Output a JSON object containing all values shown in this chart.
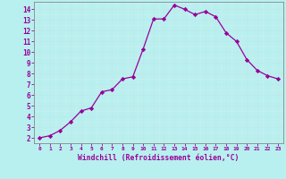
{
  "x": [
    0,
    1,
    2,
    3,
    4,
    5,
    6,
    7,
    8,
    9,
    10,
    11,
    12,
    13,
    14,
    15,
    16,
    17,
    18,
    19,
    20,
    21,
    22,
    23
  ],
  "y": [
    2,
    2.2,
    2.7,
    3.5,
    4.5,
    4.8,
    6.3,
    6.5,
    7.5,
    7.7,
    10.3,
    13.1,
    13.1,
    14.4,
    14.0,
    13.5,
    13.8,
    13.3,
    11.8,
    11.0,
    9.3,
    8.3,
    7.8,
    7.5
  ],
  "line_color": "#990099",
  "marker": "D",
  "markersize": 2.2,
  "linewidth": 0.9,
  "background_color": "#b8f0f0",
  "grid_color": "#aadddd",
  "xlabel": "Windchill (Refroidissement éolien,°C)",
  "xlabel_color": "#990099",
  "tick_color": "#990099",
  "xlim": [
    -0.5,
    23.5
  ],
  "ylim": [
    1.5,
    14.7
  ],
  "yticks": [
    2,
    3,
    4,
    5,
    6,
    7,
    8,
    9,
    10,
    11,
    12,
    13,
    14
  ],
  "xticks": [
    0,
    1,
    2,
    3,
    4,
    5,
    6,
    7,
    8,
    9,
    10,
    11,
    12,
    13,
    14,
    15,
    16,
    17,
    18,
    19,
    20,
    21,
    22,
    23
  ],
  "xtick_labels": [
    "0",
    "1",
    "2",
    "3",
    "4",
    "5",
    "6",
    "7",
    "8",
    "9",
    "10",
    "11",
    "12",
    "13",
    "14",
    "15",
    "16",
    "17",
    "18",
    "19",
    "20",
    "21",
    "22",
    "23"
  ],
  "grid_major_color": "#c0e8e8",
  "grid_minor_color": "#d0eeee"
}
